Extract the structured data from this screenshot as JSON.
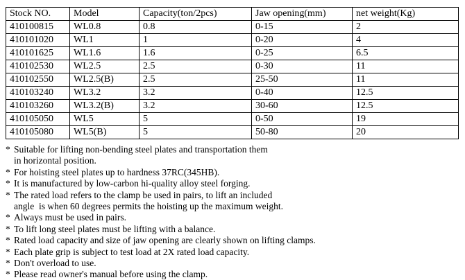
{
  "colors": {
    "background": "#ffffff",
    "border": "#000000",
    "text": "#000000"
  },
  "table": {
    "headers": [
      "Stock NO.",
      "Model",
      "Capacity(ton/2pcs)",
      "Jaw opening(mm)",
      "net weight(Kg)"
    ],
    "rows": [
      [
        "410100815",
        "WL0.8",
        "0.8",
        "0-15",
        "2"
      ],
      [
        "410101020",
        "WL1",
        "1",
        "0-20",
        "4"
      ],
      [
        "410101625",
        "WL1.6",
        "1.6",
        "0-25",
        "6.5"
      ],
      [
        "410102530",
        "WL2.5",
        "2.5",
        "0-30",
        "11"
      ],
      [
        "410102550",
        "WL2.5(B)",
        "2.5",
        "25-50",
        "11"
      ],
      [
        "410103240",
        "WL3.2",
        "3.2",
        "0-40",
        "12.5"
      ],
      [
        "410103260",
        "WL3.2(B)",
        "3.2",
        "30-60",
        "12.5"
      ],
      [
        "410105050",
        "WL5",
        "5",
        "0-50",
        "19"
      ],
      [
        "410105080",
        "WL5(B)",
        "5",
        "50-80",
        "20"
      ]
    ]
  },
  "notes": {
    "bullet_char": "*",
    "lines": [
      {
        "bullet": true,
        "text": "Suitable for lifting non-bending steel plates and transportation them"
      },
      {
        "bullet": false,
        "text": "in horizontal position."
      },
      {
        "bullet": true,
        "text": "For hoisting steel plates up to hardness 37RC(345HB)."
      },
      {
        "bullet": true,
        "text": "It is manufactured by low-carbon hi-quality alloy steel forging."
      },
      {
        "bullet": true,
        "text": "The rated load refers to the clamp be used in pairs, to lift an included"
      },
      {
        "bullet": false,
        "text": "angle  is when 60 degrees permits the hoisting up the maximum weight."
      },
      {
        "bullet": true,
        "text": "Always must be used in pairs."
      },
      {
        "bullet": true,
        "text": "To lift long steel plates must be lifting with a balance."
      },
      {
        "bullet": true,
        "text": "Rated load capacity and size of jaw opening are clearly shown on lifting clamps."
      },
      {
        "bullet": true,
        "text": "Each plate grip is subject to test load at 2X rated load capacity."
      },
      {
        "bullet": true,
        "text": "Don't overload to use."
      },
      {
        "bullet": true,
        "text": "Please read owner's manual before using the clamp."
      }
    ]
  }
}
